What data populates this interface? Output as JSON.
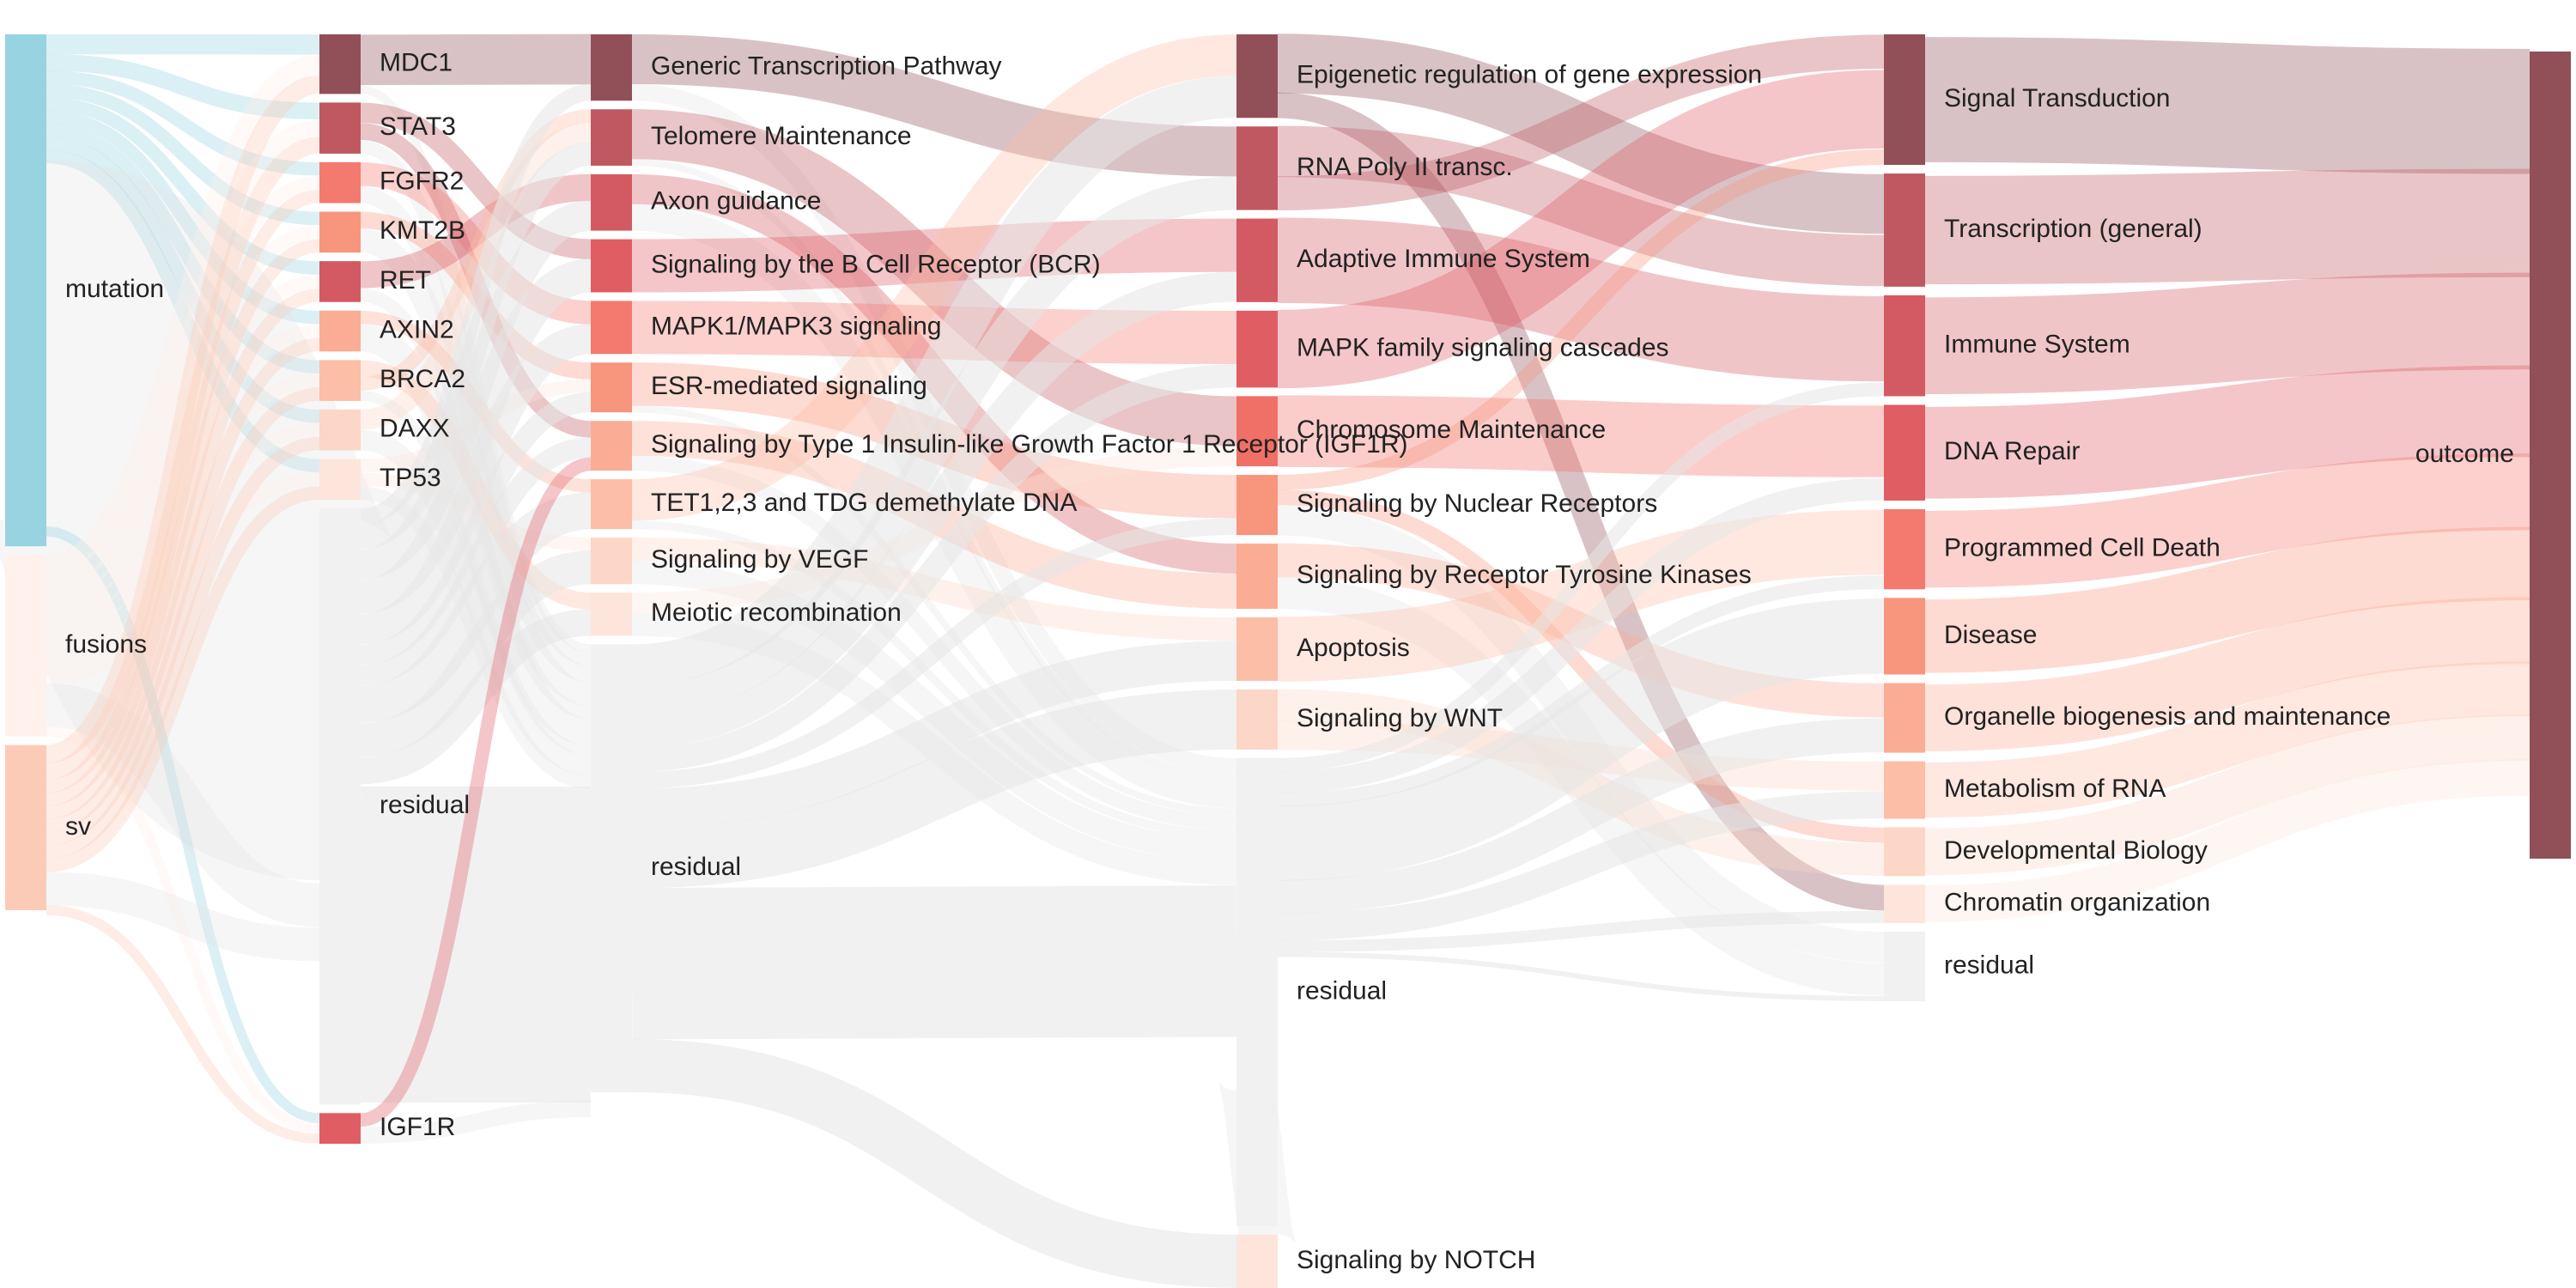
{
  "columns": [
    {
      "id": "sources",
      "nodes": [
        {
          "id": "mutation",
          "label": "mutation",
          "color": "#97d3e0",
          "value": 31
        },
        {
          "id": "fusions",
          "label": "fusions",
          "color": "#fff1ec",
          "value": 11
        },
        {
          "id": "sv",
          "label": "sv",
          "color": "#fccbb8",
          "value": 10
        }
      ]
    },
    {
      "id": "genes",
      "nodes": [
        {
          "id": "MDC1",
          "label": "MDC1",
          "color": "#914f58",
          "value": 3.5
        },
        {
          "id": "STAT3",
          "label": "STAT3",
          "color": "#c05860",
          "value": 3
        },
        {
          "id": "FGFR2",
          "label": "FGFR2",
          "color": "#f4796f",
          "value": 2.4
        },
        {
          "id": "KMT2B",
          "label": "KMT2B",
          "color": "#f8957d",
          "value": 2.4
        },
        {
          "id": "RET",
          "label": "RET",
          "color": "#d35a62",
          "value": 2.4
        },
        {
          "id": "AXIN2",
          "label": "AXIN2",
          "color": "#fbac94",
          "value": 2.4
        },
        {
          "id": "BRCA2",
          "label": "BRCA2",
          "color": "#fcbea6",
          "value": 2.4
        },
        {
          "id": "DAXX",
          "label": "DAXX",
          "color": "#fcd6c6",
          "value": 2.4
        },
        {
          "id": "TP53",
          "label": "TP53",
          "color": "#fde5db",
          "value": 2.4
        },
        {
          "id": "residual1",
          "label": "residual",
          "color": "#f1f1f1",
          "value": 35
        },
        {
          "id": "IGF1R",
          "label": "IGF1R",
          "color": "#e05d63",
          "value": 1.8
        }
      ]
    },
    {
      "id": "pathways",
      "nodes": [
        {
          "id": "gtp",
          "label": "Generic Transcription Pathway",
          "color": "#914f58",
          "value": 4
        },
        {
          "id": "telo",
          "label": "Telomere Maintenance",
          "color": "#bf5860",
          "value": 3.4
        },
        {
          "id": "axon",
          "label": "Axon guidance",
          "color": "#d35a62",
          "value": 3.4
        },
        {
          "id": "bcr",
          "label": "Signaling by the B Cell Receptor (BCR)",
          "color": "#e05d63",
          "value": 3.2
        },
        {
          "id": "mapk13",
          "label": "MAPK1/MAPK3 signaling",
          "color": "#f4796f",
          "value": 3.2
        },
        {
          "id": "esr",
          "label": "ESR-mediated signaling",
          "color": "#f8957d",
          "value": 3
        },
        {
          "id": "igf1r",
          "label": "Signaling by Type 1 Insulin-like Growth Factor 1 Receptor (IGF1R)",
          "color": "#fbac94",
          "value": 3
        },
        {
          "id": "tet",
          "label": "TET1,2,3 and TDG demethylate DNA",
          "color": "#fcbea6",
          "value": 3
        },
        {
          "id": "vegf",
          "label": "Signaling by VEGF",
          "color": "#fcd6c6",
          "value": 2.8
        },
        {
          "id": "meiotic",
          "label": "Meiotic recombination",
          "color": "#fde5db",
          "value": 2.6
        },
        {
          "id": "residual2",
          "label": "residual",
          "color": "#f1f1f1",
          "value": 27
        }
      ]
    },
    {
      "id": "reactome",
      "nodes": [
        {
          "id": "epi",
          "label": "Epigenetic regulation of gene expression",
          "color": "#914f58",
          "value": 5
        },
        {
          "id": "rnap2",
          "label": "RNA Poly II transc.",
          "color": "#bf5860",
          "value": 5
        },
        {
          "id": "ais",
          "label": "Adaptive Immune System",
          "color": "#d35a62",
          "value": 5
        },
        {
          "id": "mapkf",
          "label": "MAPK family signaling cascades",
          "color": "#e05d63",
          "value": 4.6
        },
        {
          "id": "chrom",
          "label": "Chromosome Maintenance",
          "color": "#f07067",
          "value": 4.2
        },
        {
          "id": "nucrec",
          "label": "Signaling by Nuclear Receptors",
          "color": "#f8957d",
          "value": 3.6
        },
        {
          "id": "rtk",
          "label": "Signaling by Receptor Tyrosine Kinases",
          "color": "#fbac94",
          "value": 3.9
        },
        {
          "id": "apop",
          "label": "Apoptosis",
          "color": "#fcbea6",
          "value": 3.8
        },
        {
          "id": "wnt",
          "label": "Signaling by WNT",
          "color": "#fcd6c6",
          "value": 3.6
        },
        {
          "id": "residual3",
          "label": "residual",
          "color": "#f1f1f1",
          "value": 28
        },
        {
          "id": "notch",
          "label": "Signaling by NOTCH",
          "color": "#fde5db",
          "value": 3.2
        }
      ]
    },
    {
      "id": "toplevel",
      "nodes": [
        {
          "id": "sigtrans",
          "label": "Signal Transduction",
          "color": "#914f58",
          "value": 7.5
        },
        {
          "id": "transc",
          "label": "Transcription (general)",
          "color": "#bf5860",
          "value": 6.5
        },
        {
          "id": "immune",
          "label": "Immune System",
          "color": "#d35a62",
          "value": 5.8
        },
        {
          "id": "dnarep",
          "label": "DNA Repair",
          "color": "#e05d63",
          "value": 5.5
        },
        {
          "id": "pcd",
          "label": "Programmed Cell Death",
          "color": "#f4796f",
          "value": 4.6
        },
        {
          "id": "disease",
          "label": "Disease",
          "color": "#f8957d",
          "value": 4.4
        },
        {
          "id": "organelle",
          "label": "Organelle biogenesis and maintenance",
          "color": "#fbac94",
          "value": 4
        },
        {
          "id": "rnameta",
          "label": "Metabolism of RNA",
          "color": "#fcbea6",
          "value": 3.3
        },
        {
          "id": "devbio",
          "label": "Developmental Biology",
          "color": "#fcd6c6",
          "value": 2.8
        },
        {
          "id": "chromorg",
          "label": "Chromatin organization",
          "color": "#fde5db",
          "value": 2.2
        },
        {
          "id": "residual4",
          "label": "residual",
          "color": "#f1f1f1",
          "value": 4
        }
      ]
    },
    {
      "id": "target",
      "nodes": [
        {
          "id": "outcome",
          "label": "outcome",
          "color": "#914f58",
          "value": 50.6
        }
      ]
    }
  ],
  "links": [
    [
      "mutation",
      "MDC1",
      1.2
    ],
    [
      "mutation",
      "STAT3",
      1.0
    ],
    [
      "mutation",
      "FGFR2",
      0.8
    ],
    [
      "mutation",
      "KMT2B",
      0.8
    ],
    [
      "mutation",
      "RET",
      0.8
    ],
    [
      "mutation",
      "AXIN2",
      0.8
    ],
    [
      "mutation",
      "BRCA2",
      0.8
    ],
    [
      "mutation",
      "DAXX",
      0.8
    ],
    [
      "mutation",
      "TP53",
      0.8
    ],
    [
      "mutation",
      "residual1",
      22
    ],
    [
      "mutation",
      "IGF1R",
      0.6
    ],
    [
      "fusions",
      "MDC1",
      1.2
    ],
    [
      "fusions",
      "STAT3",
      1.0
    ],
    [
      "fusions",
      "FGFR2",
      0.8
    ],
    [
      "fusions",
      "KMT2B",
      0.8
    ],
    [
      "fusions",
      "RET",
      0.8
    ],
    [
      "fusions",
      "AXIN2",
      0.8
    ],
    [
      "fusions",
      "BRCA2",
      0.8
    ],
    [
      "fusions",
      "DAXX",
      0.8
    ],
    [
      "fusions",
      "TP53",
      0.8
    ],
    [
      "fusions",
      "residual1",
      2.6
    ],
    [
      "fusions",
      "IGF1R",
      0.6
    ],
    [
      "sv",
      "MDC1",
      1.1
    ],
    [
      "sv",
      "STAT3",
      1.0
    ],
    [
      "sv",
      "FGFR2",
      0.8
    ],
    [
      "sv",
      "KMT2B",
      0.8
    ],
    [
      "sv",
      "RET",
      0.8
    ],
    [
      "sv",
      "AXIN2",
      0.8
    ],
    [
      "sv",
      "BRCA2",
      0.8
    ],
    [
      "sv",
      "DAXX",
      0.8
    ],
    [
      "sv",
      "TP53",
      0.8
    ],
    [
      "sv",
      "residual1",
      2.0
    ],
    [
      "sv",
      "IGF1R",
      0.6
    ],
    [
      "MDC1",
      "gtp",
      3.0
    ],
    [
      "MDC1",
      "residual2",
      0.5
    ],
    [
      "STAT3",
      "bcr",
      1.2
    ],
    [
      "STAT3",
      "igf1r",
      1.0
    ],
    [
      "STAT3",
      "residual2",
      0.8
    ],
    [
      "FGFR2",
      "mapk13",
      1.4
    ],
    [
      "FGFR2",
      "residual2",
      1.0
    ],
    [
      "KMT2B",
      "esr",
      1.0
    ],
    [
      "KMT2B",
      "residual2",
      1.4
    ],
    [
      "RET",
      "axon",
      1.6
    ],
    [
      "RET",
      "residual2",
      0.8
    ],
    [
      "AXIN2",
      "tet",
      0.8
    ],
    [
      "AXIN2",
      "residual2",
      1.6
    ],
    [
      "BRCA2",
      "meiotic",
      1.0
    ],
    [
      "BRCA2",
      "telo",
      0.8
    ],
    [
      "BRCA2",
      "residual2",
      0.6
    ],
    [
      "DAXX",
      "telo",
      1.2
    ],
    [
      "DAXX",
      "residual2",
      1.2
    ],
    [
      "TP53",
      "esr",
      0.8
    ],
    [
      "TP53",
      "vegf",
      0.8
    ],
    [
      "TP53",
      "residual2",
      0.8
    ],
    [
      "residual1",
      "gtp",
      1.0
    ],
    [
      "residual1",
      "telo",
      1.4
    ],
    [
      "residual1",
      "axon",
      1.8
    ],
    [
      "residual1",
      "bcr",
      2.0
    ],
    [
      "residual1",
      "mapk13",
      1.8
    ],
    [
      "residual1",
      "esr",
      1.2
    ],
    [
      "residual1",
      "igf1r",
      1.2
    ],
    [
      "residual1",
      "tet",
      2.2
    ],
    [
      "residual1",
      "vegf",
      2.0
    ],
    [
      "residual1",
      "meiotic",
      1.6
    ],
    [
      "residual1",
      "residual2",
      18.8
    ],
    [
      "IGF1R",
      "igf1r",
      0.8
    ],
    [
      "IGF1R",
      "residual2",
      1.0
    ],
    [
      "gtp",
      "rnap2",
      3.0
    ],
    [
      "gtp",
      "residual3",
      1.0
    ],
    [
      "telo",
      "chrom",
      3.0
    ],
    [
      "telo",
      "residual3",
      0.4
    ],
    [
      "axon",
      "rtk",
      1.8
    ],
    [
      "axon",
      "residual3",
      1.6
    ],
    [
      "bcr",
      "ais",
      3.2
    ],
    [
      "mapk13",
      "mapkf",
      3.2
    ],
    [
      "esr",
      "nucrec",
      2.6
    ],
    [
      "esr",
      "residual3",
      0.4
    ],
    [
      "igf1r",
      "rtk",
      2.1
    ],
    [
      "igf1r",
      "residual3",
      0.9
    ],
    [
      "tet",
      "epi",
      2.5
    ],
    [
      "tet",
      "residual3",
      0.5
    ],
    [
      "vegf",
      "apop",
      1.4
    ],
    [
      "vegf",
      "residual3",
      1.4
    ],
    [
      "meiotic",
      "chrom",
      1.2
    ],
    [
      "meiotic",
      "residual3",
      1.4
    ],
    [
      "residual2",
      "epi",
      2.5
    ],
    [
      "residual2",
      "rnap2",
      2.0
    ],
    [
      "residual2",
      "ais",
      1.8
    ],
    [
      "residual2",
      "mapkf",
      1.4
    ],
    [
      "residual2",
      "nucrec",
      1.0
    ],
    [
      "residual2",
      "apop",
      2.4
    ],
    [
      "residual2",
      "wnt",
      3.6
    ],
    [
      "residual2",
      "residual3",
      9.1
    ],
    [
      "residual2",
      "notch",
      3.2
    ],
    [
      "epi",
      "transc",
      3.5
    ],
    [
      "epi",
      "chromorg",
      1.5
    ],
    [
      "rnap2",
      "transc",
      3.0
    ],
    [
      "rnap2",
      "sigtrans",
      2.0
    ],
    [
      "ais",
      "immune",
      5.0
    ],
    [
      "mapkf",
      "sigtrans",
      4.6
    ],
    [
      "chrom",
      "dnarep",
      4.2
    ],
    [
      "nucrec",
      "sigtrans",
      0.9
    ],
    [
      "nucrec",
      "devbio",
      0.9
    ],
    [
      "nucrec",
      "residual4",
      1.8
    ],
    [
      "rtk",
      "organelle",
      2.0
    ],
    [
      "rtk",
      "residual4",
      1.9
    ],
    [
      "apop",
      "pcd",
      3.8
    ],
    [
      "wnt",
      "devbio",
      1.9
    ],
    [
      "wnt",
      "rnameta",
      1.7
    ],
    [
      "residual3",
      "immune",
      0.8
    ],
    [
      "residual3",
      "dnarep",
      1.3
    ],
    [
      "residual3",
      "pcd",
      0.8
    ],
    [
      "residual3",
      "disease",
      4.4
    ],
    [
      "residual3",
      "organelle",
      2.0
    ],
    [
      "residual3",
      "rnameta",
      1.6
    ],
    [
      "residual3",
      "chromorg",
      0.7
    ],
    [
      "residual3",
      "residual4",
      0.3
    ],
    [
      "residual3",
      "sigtrans",
      0.0
    ],
    [
      "residual3",
      "transc",
      0.0
    ],
    [
      "notch",
      "residual3",
      3.2
    ],
    [
      "sigtrans",
      "outcome",
      7.5
    ],
    [
      "transc",
      "outcome",
      6.5
    ],
    [
      "immune",
      "outcome",
      5.8
    ],
    [
      "dnarep",
      "outcome",
      5.5
    ],
    [
      "pcd",
      "outcome",
      4.6
    ],
    [
      "disease",
      "outcome",
      4.4
    ],
    [
      "organelle",
      "outcome",
      4.0
    ],
    [
      "rnameta",
      "outcome",
      3.3
    ],
    [
      "devbio",
      "outcome",
      2.8
    ],
    [
      "chromorg",
      "outcome",
      2.2
    ]
  ]
}
